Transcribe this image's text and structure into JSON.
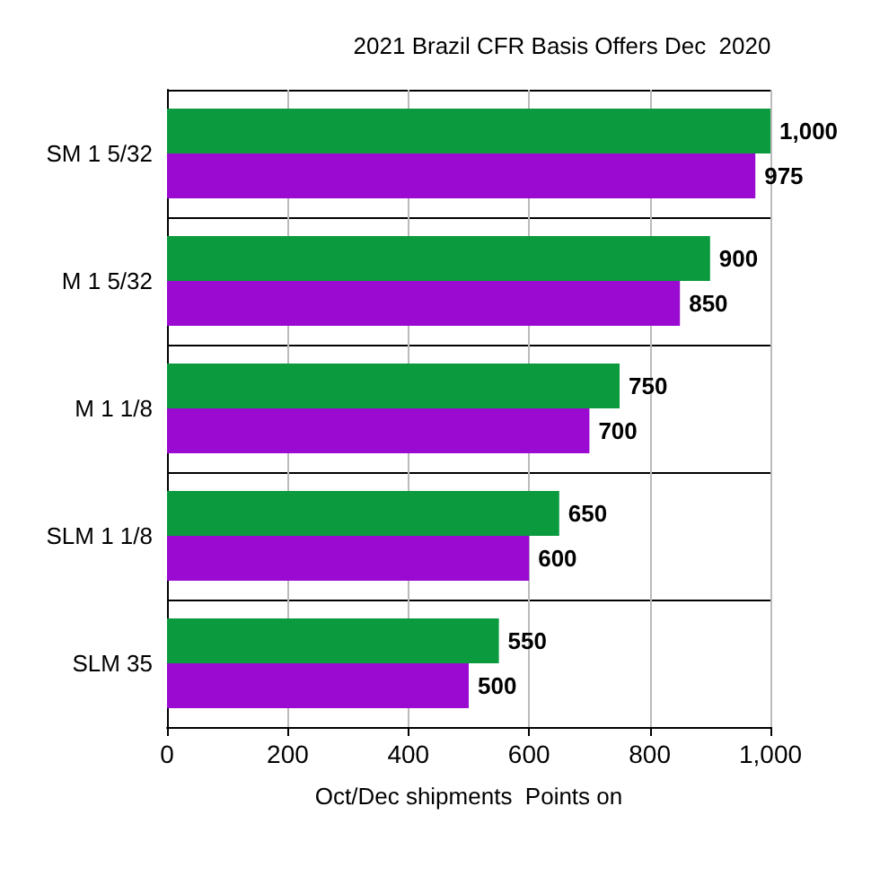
{
  "chart_data": {
    "type": "bar",
    "orientation": "horizontal",
    "title": "2021 Brazil CFR Basis Offers Dec  2020",
    "xlabel": "Oct/Dec shipments  Points on",
    "categories": [
      "SM 1 5/32",
      "M 1 5/32",
      "M 1 1/8",
      "SLM 1 1/8",
      "SLM 35"
    ],
    "series": [
      {
        "color": "#0b9a3e",
        "values": [
          1000,
          900,
          750,
          650,
          550
        ],
        "value_labels": [
          "1,000",
          "900",
          "750",
          "650",
          "550"
        ]
      },
      {
        "color": "#9a0ad0",
        "values": [
          975,
          850,
          700,
          600,
          500
        ],
        "value_labels": [
          "975",
          "850",
          "700",
          "600",
          "500"
        ]
      }
    ],
    "xlim": [
      0,
      1000
    ],
    "xticks": [
      0,
      200,
      400,
      600,
      800,
      {
        "value": 1000,
        "label": "1,000"
      }
    ],
    "grid": true
  }
}
